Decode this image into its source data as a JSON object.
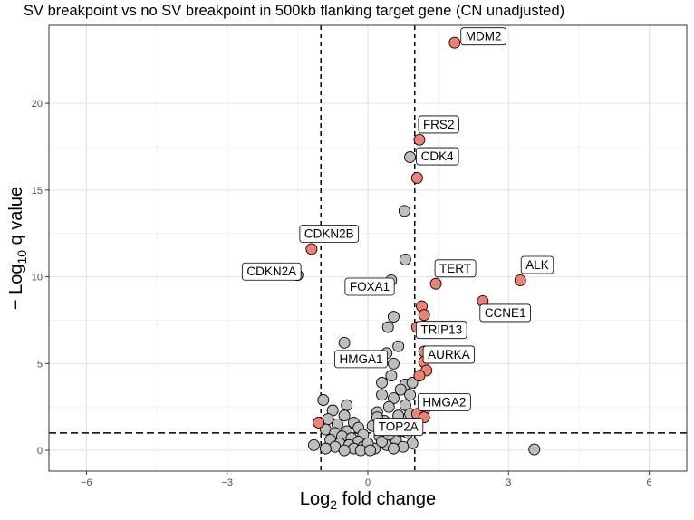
{
  "chart_data": {
    "type": "scatter",
    "title": "SV breakpoint vs no SV breakpoint in 500kb flanking target gene (CN unadjusted)",
    "xlabel": {
      "prefix": "Log",
      "sub": "2",
      "suffix": " fold change"
    },
    "ylabel": {
      "prefix": "− Log",
      "sub": "10",
      "suffix": " q value"
    },
    "xlim": [
      -6.8,
      6.8
    ],
    "ylim": [
      -1.2,
      24.5
    ],
    "x_ticks": [
      -6,
      -3,
      0,
      3,
      6
    ],
    "x_tick_labels": [
      "−6",
      "−3",
      "0",
      "3",
      "6"
    ],
    "y_ticks": [
      0,
      5,
      10,
      15,
      20
    ],
    "y_tick_labels": [
      "0",
      "5",
      "10",
      "15",
      "20"
    ],
    "grid": true,
    "vlines": [
      -1,
      1
    ],
    "hline": 1,
    "colors": {
      "significant": "#f08070",
      "not_significant": "#bebebe",
      "point_stroke": "#000000"
    },
    "significant_points": [
      {
        "x": 1.85,
        "y": 23.5,
        "label": "MDM2"
      },
      {
        "x": 1.1,
        "y": 17.9,
        "label": "FRS2"
      },
      {
        "x": 1.05,
        "y": 15.7
      },
      {
        "x": -1.2,
        "y": 11.6,
        "label": "CDKN2B"
      },
      {
        "x": -1.5,
        "y": 10.1,
        "label": "CDKN2A"
      },
      {
        "x": 3.25,
        "y": 9.8,
        "label": "ALK"
      },
      {
        "x": 1.45,
        "y": 9.6,
        "label": "TERT"
      },
      {
        "x": 2.45,
        "y": 8.6,
        "label": "CCNE1"
      },
      {
        "x": 1.15,
        "y": 8.3
      },
      {
        "x": 1.2,
        "y": 7.8
      },
      {
        "x": 1.05,
        "y": 7.1,
        "label": "TRIP13"
      },
      {
        "x": 1.2,
        "y": 5.7
      },
      {
        "x": 1.2,
        "y": 5.1,
        "label": "AURKA"
      },
      {
        "x": 1.25,
        "y": 4.6
      },
      {
        "x": 1.1,
        "y": 4.3
      },
      {
        "x": 1.2,
        "y": 2.3
      },
      {
        "x": 1.05,
        "y": 2.1,
        "label": "HMGA2"
      },
      {
        "x": 1.2,
        "y": 1.9
      },
      {
        "x": -1.05,
        "y": 1.6
      }
    ],
    "other_points": [
      {
        "x": 0.9,
        "y": 16.9,
        "label": "CDK4"
      },
      {
        "x": 0.78,
        "y": 13.8
      },
      {
        "x": 0.8,
        "y": 11.0
      },
      {
        "x": 0.5,
        "y": 9.8,
        "label": "FOXA1"
      },
      {
        "x": 0.55,
        "y": 7.7
      },
      {
        "x": 0.43,
        "y": 7.1
      },
      {
        "x": -0.5,
        "y": 6.2
      },
      {
        "x": 0.65,
        "y": 6.0
      },
      {
        "x": 0.4,
        "y": 5.6
      },
      {
        "x": 0.55,
        "y": 5.0,
        "label": "HMGA1"
      },
      {
        "x": 0.5,
        "y": 4.3
      },
      {
        "x": 0.3,
        "y": 3.9
      },
      {
        "x": 0.8,
        "y": 3.8
      },
      {
        "x": 0.95,
        "y": 3.9
      },
      {
        "x": 0.7,
        "y": 3.5
      },
      {
        "x": 0.9,
        "y": 3.2
      },
      {
        "x": 0.55,
        "y": 3.0
      },
      {
        "x": 0.3,
        "y": 3.2
      },
      {
        "x": 0.45,
        "y": 2.5
      },
      {
        "x": 0.8,
        "y": 2.6
      },
      {
        "x": 0.2,
        "y": 2.2
      },
      {
        "x": 0.65,
        "y": 2.0
      },
      {
        "x": 0.9,
        "y": 2.1
      },
      {
        "x": 0.35,
        "y": 1.7
      },
      {
        "x": 0.75,
        "y": 1.5
      },
      {
        "x": 0.1,
        "y": 1.4
      },
      {
        "x": 0.5,
        "y": 1.2
      },
      {
        "x": 0.85,
        "y": 1.0
      },
      {
        "x": 0.25,
        "y": 0.8
      },
      {
        "x": 0.6,
        "y": 0.6
      },
      {
        "x": 0.95,
        "y": 0.4
      },
      {
        "x": 0.4,
        "y": 0.3
      },
      {
        "x": 0.75,
        "y": 0.2
      },
      {
        "x": 0.15,
        "y": 0.1,
        "label": "TOP2A"
      },
      {
        "x": 0.55,
        "y": 0.1
      },
      {
        "x": 0.3,
        "y": 0.5
      },
      {
        "x": 0.7,
        "y": 1.1
      },
      {
        "x": 0.2,
        "y": 1.9
      },
      {
        "x": 0.45,
        "y": 0.9
      },
      {
        "x": -0.95,
        "y": 2.9
      },
      {
        "x": -0.45,
        "y": 2.6
      },
      {
        "x": -0.75,
        "y": 2.3
      },
      {
        "x": -0.5,
        "y": 2.0
      },
      {
        "x": -0.85,
        "y": 1.8
      },
      {
        "x": -0.3,
        "y": 1.6
      },
      {
        "x": -0.65,
        "y": 1.5
      },
      {
        "x": -0.2,
        "y": 1.3
      },
      {
        "x": -0.9,
        "y": 1.2
      },
      {
        "x": -0.45,
        "y": 1.1
      },
      {
        "x": -0.7,
        "y": 1.0
      },
      {
        "x": -0.1,
        "y": 0.9
      },
      {
        "x": -0.55,
        "y": 0.8
      },
      {
        "x": -0.35,
        "y": 0.7
      },
      {
        "x": -0.8,
        "y": 0.6
      },
      {
        "x": -0.2,
        "y": 0.5
      },
      {
        "x": -0.6,
        "y": 0.4
      },
      {
        "x": -0.4,
        "y": 0.3
      },
      {
        "x": -0.1,
        "y": 0.2
      },
      {
        "x": -0.7,
        "y": 0.2
      },
      {
        "x": -1.15,
        "y": 0.3
      },
      {
        "x": -0.9,
        "y": 0.1
      },
      {
        "x": -0.3,
        "y": 0.1
      },
      {
        "x": 0.0,
        "y": 0.4
      },
      {
        "x": -0.15,
        "y": 0.0
      },
      {
        "x": 0.05,
        "y": 0.0
      },
      {
        "x": -0.5,
        "y": 0.0
      },
      {
        "x": 3.55,
        "y": 0.05
      }
    ]
  }
}
